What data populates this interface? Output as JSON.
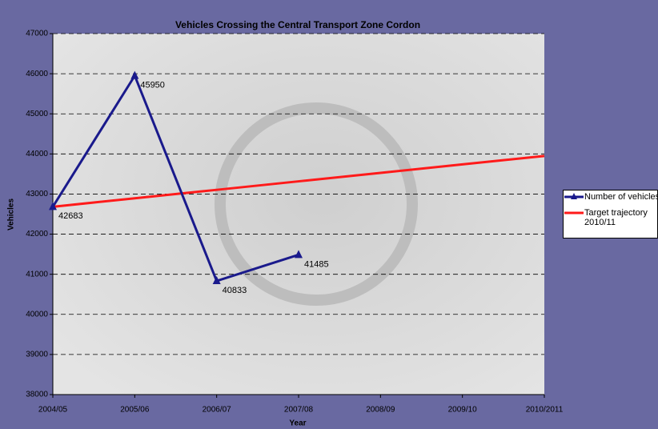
{
  "chart_data": {
    "type": "line",
    "title": "Vehicles Crossing the Central Transport Zone Cordon",
    "x_label": "Year",
    "y_label": "Vehicles",
    "categories": [
      "2004/05",
      "2005/06",
      "2006/07",
      "2007/08",
      "2008/09",
      "2009/10",
      "2010/2011"
    ],
    "series": [
      {
        "name": "Number of vehicles",
        "color": "#1a1a8c",
        "marker": "triangle",
        "values": [
          42683,
          45950,
          40833,
          41485,
          null,
          null,
          null
        ],
        "data_labels": true
      },
      {
        "name": "Target trajectory 2010/11",
        "color": "#ff1a1a",
        "marker": "none",
        "values": [
          42683,
          42894,
          43105,
          43317,
          43528,
          43739,
          43950
        ],
        "data_labels": false
      }
    ],
    "ylim": [
      38000,
      47000
    ],
    "yticks": [
      38000,
      39000,
      40000,
      41000,
      42000,
      43000,
      44000,
      45000,
      46000,
      47000
    ],
    "grid": true,
    "legend": "right"
  }
}
